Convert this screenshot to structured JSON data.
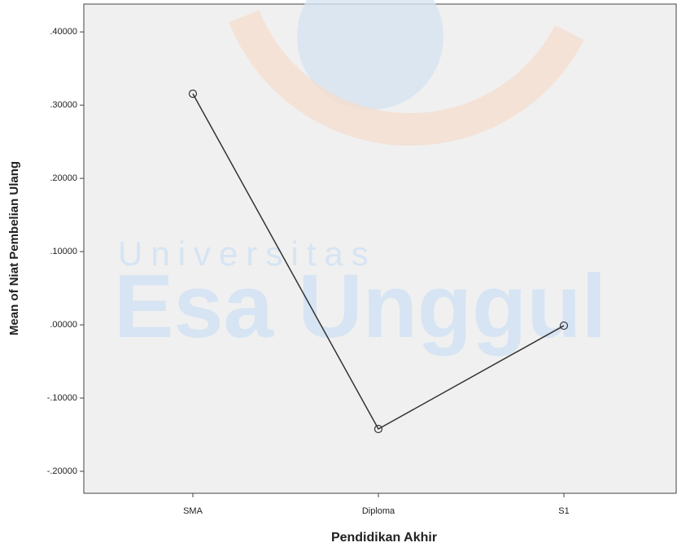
{
  "chart_data": {
    "type": "line",
    "x_label": "Pendidikan Akhir",
    "y_label": "Mean of Niat Pembelian Ulang",
    "watermark": [
      "Universitas",
      "Esa Unggul"
    ],
    "categories": [
      "SMA",
      "Diploma",
      "S1"
    ],
    "series": [
      {
        "color": "#333333",
        "values": [
          0.3156,
          -0.1422,
          -0.0011
        ]
      }
    ],
    "ylim": [
      -0.23,
      0.438
    ],
    "yticks": [
      {
        "value": 0.4,
        "label": ".40000"
      },
      {
        "value": 0.3,
        "label": ".30000"
      },
      {
        "value": 0.2,
        "label": ".20000"
      },
      {
        "value": 0.1,
        "label": ".10000"
      },
      {
        "value": 0,
        "label": ".00000"
      },
      {
        "value": -0.1,
        "label": "-.10000"
      },
      {
        "value": -0.2,
        "label": "-.20000"
      }
    ],
    "grid": false
  }
}
